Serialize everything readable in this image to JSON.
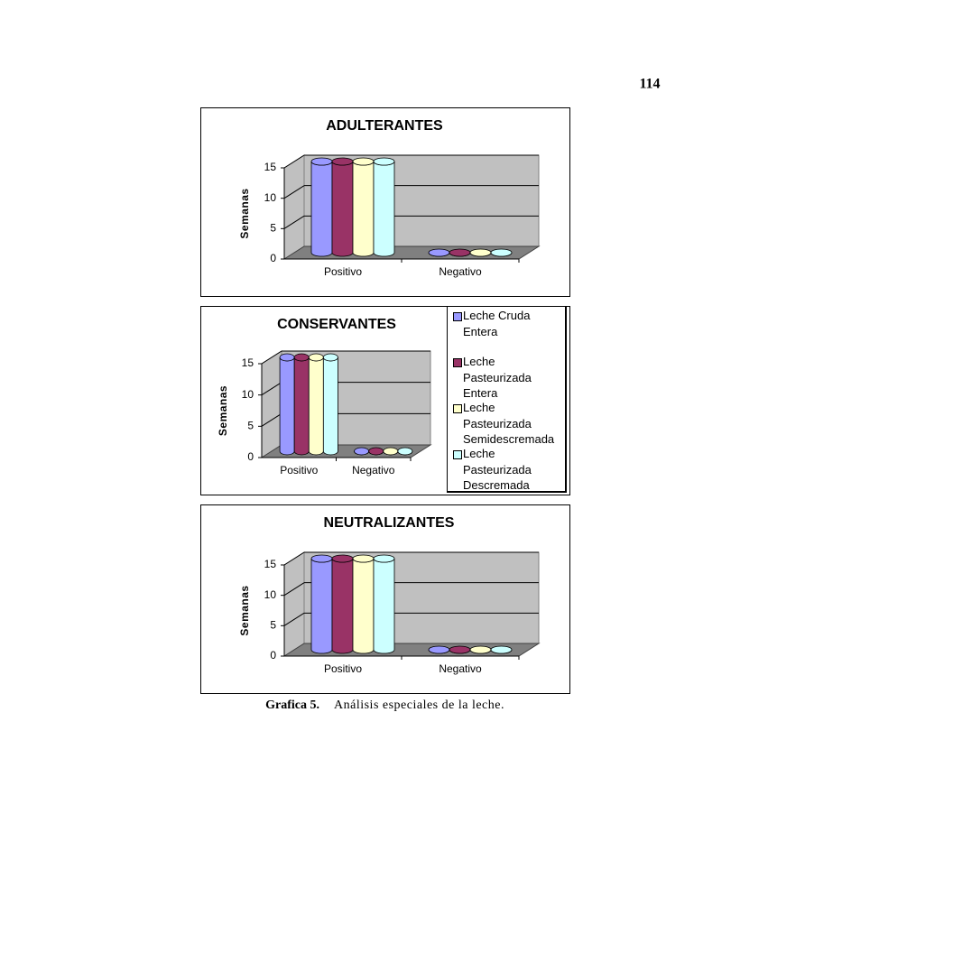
{
  "page_number": "114",
  "caption": {
    "label": "Grafica 5.",
    "text": "Análisis especiales de la leche."
  },
  "chart_data": [
    {
      "type": "bar3d",
      "title": "ADULTERANTES",
      "y_label": "Semanas",
      "categories": [
        "Positivo",
        "Negativo"
      ],
      "series": [
        {
          "color": "#9999ff",
          "values": [
            15,
            0
          ]
        },
        {
          "color": "#993366",
          "values": [
            15,
            0
          ]
        },
        {
          "color": "#ffffcc",
          "values": [
            15,
            0
          ]
        },
        {
          "color": "#ccffff",
          "values": [
            15,
            0
          ]
        }
      ],
      "ylim": [
        0,
        15
      ],
      "yticks": [
        0,
        5,
        10,
        15
      ],
      "grid": true
    },
    {
      "type": "bar3d",
      "title": "CONSERVANTES",
      "y_label": "Semanas",
      "categories": [
        "Positivo",
        "Negativo"
      ],
      "series": [
        {
          "name": "Leche Cruda Entera",
          "color": "#9999ff",
          "values": [
            15,
            0
          ]
        },
        {
          "name": "Leche Pasteurizada Entera",
          "color": "#993366",
          "values": [
            15,
            0
          ]
        },
        {
          "name": "Leche Pasteurizada Semidescremada",
          "color": "#ffffcc",
          "values": [
            15,
            0
          ]
        },
        {
          "name": "Leche Pasteurizada Descremada",
          "color": "#ccffff",
          "values": [
            15,
            0
          ]
        }
      ],
      "ylim": [
        0,
        15
      ],
      "yticks": [
        0,
        5,
        10,
        15
      ],
      "grid": true,
      "legend": "right"
    },
    {
      "type": "bar3d",
      "title": "NEUTRALIZANTES",
      "y_label": "Semanas",
      "categories": [
        "Positivo",
        "Negativo"
      ],
      "series": [
        {
          "color": "#9999ff",
          "values": [
            15,
            0
          ]
        },
        {
          "color": "#993366",
          "values": [
            15,
            0
          ]
        },
        {
          "color": "#ffffcc",
          "values": [
            15,
            0
          ]
        },
        {
          "color": "#ccffff",
          "values": [
            15,
            0
          ]
        }
      ],
      "ylim": [
        0,
        15
      ],
      "yticks": [
        0,
        5,
        10,
        15
      ],
      "grid": true
    }
  ]
}
